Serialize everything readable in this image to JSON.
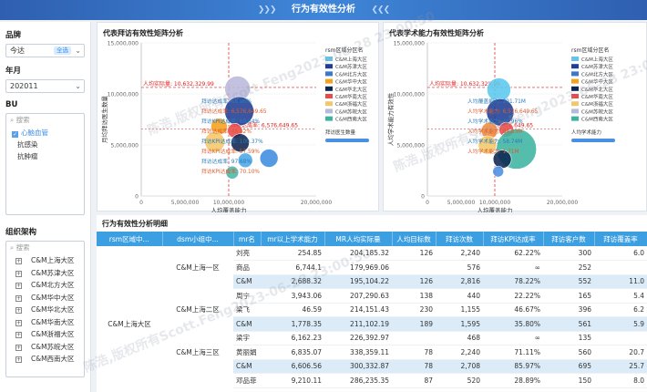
{
  "header": {
    "title": "行为有效性分析",
    "arrows_left": "❯❯❯",
    "arrows_right": "❮❮❮"
  },
  "filters": {
    "brand": {
      "label": "品牌",
      "value": "今达",
      "tag": "全选"
    },
    "month": {
      "label": "年月",
      "value": "202011"
    },
    "bu": {
      "label": "BU",
      "search_placeholder": "搜索",
      "items": [
        "心脑血管",
        "抗感染",
        "抗肿瘤"
      ]
    },
    "org": {
      "label": "组织架构",
      "search_placeholder": "搜索",
      "items": [
        "C&M上海大区",
        "C&M苏津大区",
        "C&M北方大区",
        "C&M华中大区",
        "C&M华北大区",
        "C&M华南大区",
        "C&M浙福大区",
        "C&M苏皖大区",
        "C&M西南大区"
      ]
    }
  },
  "chart_left": {
    "title": "代表拜访有效性矩阵分析",
    "watermark": "陈浩,版权所有Scott.Feng2023-06-28 23:00:50"
  },
  "chart_right": {
    "title": "代表学术能力有效性矩阵分析"
  },
  "chart_data": [
    {
      "type": "scatter",
      "title": "代表拜访有效性矩阵分析",
      "xlabel": "人均覆盖能力",
      "ylabel": "月均拜访医生数量",
      "xlim": [
        0,
        20000000
      ],
      "ylim": [
        0,
        15000000
      ],
      "xticks": [
        "0",
        "5,000,000",
        "10,000,000",
        "20,000,000"
      ],
      "yticks": [
        "0",
        "5,000,000",
        "10,000,000",
        "15,000,000"
      ],
      "ref_lines": {
        "x": 10000000,
        "y": 10632329.99,
        "y_label": "人均实际量: 10,632,329.99",
        "y2": 6576649.65,
        "y2_label": "拜访达成率: 6,576,649.65"
      },
      "legend_title": "rsm区域分区名",
      "legend_position": "right",
      "legend": [
        "C&M上海大区",
        "C&M苏津大区",
        "C&M北方大区",
        "C&M华中大区",
        "C&M华北大区",
        "C&M华南大区",
        "C&M浙福大区",
        "C&M苏皖大区",
        "C&M西南大区"
      ],
      "size_legend_label": "拜访医生数量",
      "points": [
        {
          "x": 11000000,
          "y": 10500000,
          "r": 14,
          "color": "#b9b9dc"
        },
        {
          "x": 11200000,
          "y": 8300000,
          "r": 16,
          "color": "#1f3f95"
        },
        {
          "x": 8900000,
          "y": 6800000,
          "r": 9,
          "color": "#f4a21c"
        },
        {
          "x": 10700000,
          "y": 6400000,
          "r": 8,
          "color": "#e84a4a"
        },
        {
          "x": 8400000,
          "y": 5300000,
          "r": 11,
          "color": "#f4c86a"
        },
        {
          "x": 11300000,
          "y": 5200000,
          "r": 10,
          "color": "#0c2552"
        },
        {
          "x": 11900000,
          "y": 3500000,
          "r": 8,
          "color": "#4aa7e8"
        },
        {
          "x": 14600000,
          "y": 3700000,
          "r": 10,
          "color": "#3c8de0"
        },
        {
          "x": 10400000,
          "y": 2300000,
          "r": 7,
          "color": "#49b8a8"
        }
      ],
      "annotations": [
        "拜访达成率: 66.96%",
        "拜访达成率: 6,576,649.65",
        "拜访KPI达成率: 69.54%",
        "拜访达成率: 46.42%",
        "拜访KPI达成率: 100.37%",
        "拜访KPI达成率: 57.59%",
        "拜访达成率: 97.68%",
        "拜访KPI达成率: 70.10%"
      ]
    },
    {
      "type": "scatter",
      "title": "代表学术能力有效性矩阵分析",
      "xlabel": "人均覆盖能力",
      "ylabel": "人均学术能力有效性",
      "xlim": [
        0,
        20000000
      ],
      "ylim": [
        0,
        15000000
      ],
      "xticks": [
        "0",
        "5,000,000",
        "10,000,000",
        "20,000,000"
      ],
      "yticks": [
        "0",
        "5,000,000",
        "10,000,000",
        "15,000,000"
      ],
      "ref_lines": {
        "x": 10000000,
        "y": 10632329.99,
        "y_label": "人均实际量: 10,632,329.99",
        "y2": 6576649.65,
        "y2_label": "6,576,649.65"
      },
      "legend_title": "rsm区域分区名",
      "legend_position": "right",
      "legend": [
        "C&M上海大区",
        "C&M苏津大区",
        "C&M北方大区",
        "C&M华中大区",
        "C&M华北大区",
        "C&M华南大区",
        "C&M浙福大区",
        "C&M苏皖大区",
        "C&M西南大区"
      ],
      "size_legend_label": "人均学术能力",
      "points": [
        {
          "x": 10600000,
          "y": 10400000,
          "r": 13,
          "color": "#5ac8ee"
        },
        {
          "x": 10800000,
          "y": 8200000,
          "r": 15,
          "color": "#1f3f95"
        },
        {
          "x": 9200000,
          "y": 6400000,
          "r": 9,
          "color": "#f48a3a"
        },
        {
          "x": 11700000,
          "y": 6500000,
          "r": 8,
          "color": "#e84a4a"
        },
        {
          "x": 8900000,
          "y": 5000000,
          "r": 10,
          "color": "#f4c86a"
        },
        {
          "x": 13200000,
          "y": 4600000,
          "r": 22,
          "color": "#3cb4a0"
        },
        {
          "x": 11100000,
          "y": 3600000,
          "r": 10,
          "color": "#0c2552"
        },
        {
          "x": 10500000,
          "y": 2400000,
          "r": 6,
          "color": "#4a90e2"
        }
      ],
      "annotations": [
        "人均覆盖能力: 291.71M",
        "人均学术能力: 6,576,649.65",
        "人均学术能力: 48.96%",
        "人均学术能力: 84.83M",
        "人均学术能力: 58.74M",
        "人均学术能力: 1.71M"
      ]
    }
  ],
  "table": {
    "title": "行为有效性分析明细",
    "columns": [
      "rsm区域中...",
      "dsm小组中...",
      "mr名",
      "mr以上学术能力",
      "MR人均实际量",
      "人均目标数",
      "拜访次数",
      "拜访KPI达成率",
      "拜访客户数",
      "拜访覆盖率"
    ],
    "rows": [
      {
        "g1": "",
        "g2": "",
        "mr": "刘亮",
        "v": [
          "254.85",
          "204,185.32",
          "126",
          "2,240",
          "62.22%",
          "300",
          "6.0"
        ]
      },
      {
        "g1": "",
        "g2": "C&M上海一区",
        "mr": "商品",
        "v": [
          "6,744.1",
          "179,969.06",
          "",
          "576",
          "∞",
          "252",
          ""
        ]
      },
      {
        "g1": "",
        "g2": "",
        "mr": "C&M",
        "v": [
          "2,688.32",
          "195,104.22",
          "126",
          "2,816",
          "78.22%",
          "552",
          "11.0"
        ]
      },
      {
        "g1": "",
        "g2": "",
        "mr": "周宁",
        "v": [
          "3,943.06",
          "207,290.63",
          "138",
          "440",
          "22.22%",
          "165",
          "5.4"
        ]
      },
      {
        "g1": "",
        "g2": "C&M上海二区",
        "mr": "梁飞",
        "v": [
          "46.59",
          "214,151.43",
          "230",
          "1,155",
          "46.67%",
          "396",
          "6.2"
        ]
      },
      {
        "g1": "C&M上海大区",
        "g2": "",
        "mr": "C&M",
        "v": [
          "1,778.35",
          "211,102.19",
          "189",
          "1,595",
          "35.80%",
          "561",
          "5.9"
        ]
      },
      {
        "g1": "",
        "g2": "",
        "mr": "梁宇",
        "v": [
          "6,162.23",
          "226,392.97",
          "",
          "468",
          "∞",
          "135",
          ""
        ]
      },
      {
        "g1": "",
        "g2": "C&M上海三区",
        "mr": "黄丽娟",
        "v": [
          "6,835.07",
          "338,359.11",
          "78",
          "2,240",
          "71.11%",
          "560",
          "20.7"
        ]
      },
      {
        "g1": "",
        "g2": "",
        "mr": "C&M",
        "v": [
          "6,606.56",
          "300,332.87",
          "78",
          "2,708",
          "85.97%",
          "695",
          "25.7"
        ]
      },
      {
        "g1": "",
        "g2": "",
        "mr": "邓品菲",
        "v": [
          "9,210.11",
          "286,235.35",
          "87",
          "520",
          "28.89%",
          "150",
          "8.0"
        ]
      }
    ]
  }
}
